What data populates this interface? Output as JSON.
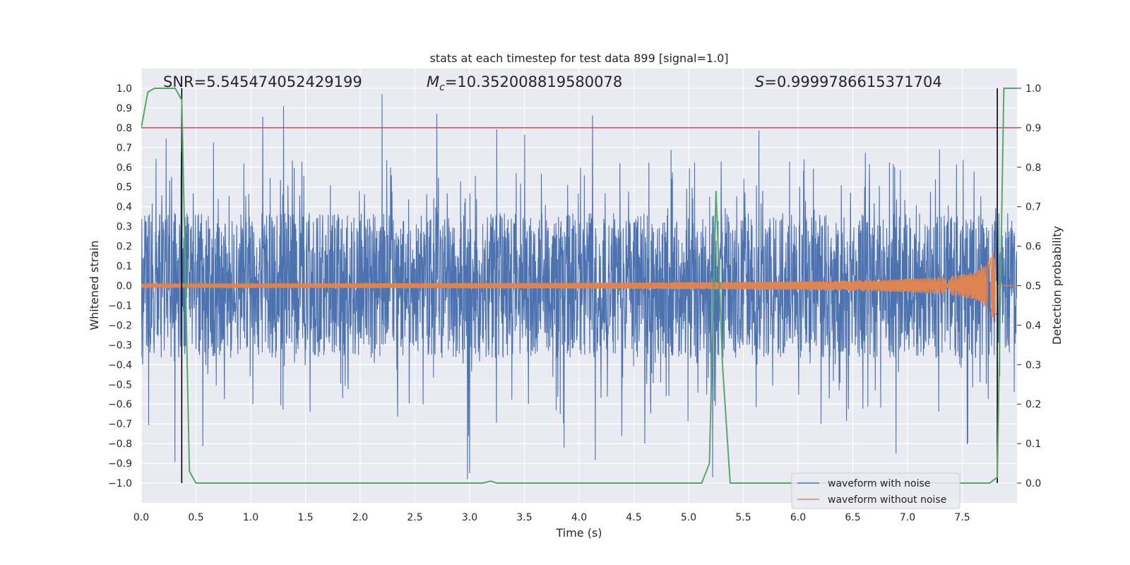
{
  "chart_data": {
    "type": "line",
    "title": "stats at each timestep for test data 899 [signal=1.0]",
    "xlabel": "Time (s)",
    "ylabel": "Whitened strain",
    "y2label": "Detection probability",
    "xlim": [
      0.0,
      8.0
    ],
    "ylim": [
      -1.1,
      1.1
    ],
    "y2lim": [
      -0.05,
      1.05
    ],
    "x_ticks": [
      "0.0",
      "0.5",
      "1.0",
      "1.5",
      "2.0",
      "2.5",
      "3.0",
      "3.5",
      "4.0",
      "4.5",
      "5.0",
      "5.5",
      "6.0",
      "6.5",
      "7.0",
      "7.5"
    ],
    "y_ticks": [
      "1.0",
      "0.9",
      "0.8",
      "0.7",
      "0.6",
      "0.5",
      "0.4",
      "0.3",
      "0.2",
      "0.1",
      "0.0",
      "−0.1",
      "−0.2",
      "−0.3",
      "−0.4",
      "−0.5",
      "−0.6",
      "−0.7",
      "−0.8",
      "−0.9",
      "−1.0"
    ],
    "y2_ticks": [
      "1.0",
      "0.9",
      "0.8",
      "0.7",
      "0.6",
      "0.5",
      "0.4",
      "0.3",
      "0.2",
      "0.1",
      "0.0"
    ],
    "stats": {
      "snr": "SNR=5.545474052429199",
      "mc_symbol": "M",
      "mc_sub": "c",
      "mc_value": "=10.352008819580078",
      "s_symbol": "S",
      "s_value": "=0.9999786615371704"
    },
    "threshold_probability": 0.9,
    "markers_x": [
      0.37,
      7.82
    ],
    "series": [
      {
        "name": "waveform with noise",
        "color": "#4c72b0",
        "axis": "left",
        "envelope_upper": 0.35,
        "envelope_lower": -0.35,
        "spike_max": 0.97,
        "spike_min": -0.98
      },
      {
        "name": "waveform without noise",
        "color": "#dd8452",
        "axis": "left",
        "chirp_start_amplitude": 0.01,
        "chirp_peak_amplitude": 0.19,
        "chirp_peak_time": 7.82
      },
      {
        "name": "Detection probability",
        "color": "#55a868",
        "axis": "right",
        "x": [
          0.0,
          0.06,
          0.12,
          0.25,
          0.31,
          0.37,
          0.44,
          0.5,
          1.0,
          2.0,
          3.0,
          3.12,
          3.19,
          3.25,
          4.0,
          5.0,
          5.12,
          5.19,
          5.25,
          5.31,
          5.38,
          6.0,
          7.0,
          7.75,
          7.82,
          7.88,
          7.94,
          8.0
        ],
        "values": [
          0.9,
          0.99,
          1.0,
          1.0,
          1.0,
          0.97,
          0.03,
          0.0,
          0.0,
          0.0,
          0.0,
          0.0,
          0.005,
          0.0,
          0.0,
          0.0,
          0.0,
          0.05,
          0.74,
          0.3,
          0.0,
          0.0,
          0.0,
          0.0,
          0.015,
          1.0,
          1.0,
          1.0
        ]
      }
    ],
    "legend": {
      "position": "lower-right",
      "entries": [
        "waveform with noise",
        "waveform without noise"
      ]
    },
    "colors": {
      "threshold": "#c44e52",
      "marker": "#000000",
      "grid": "#ffffff",
      "plot_bg": "#eaeaf2"
    }
  }
}
